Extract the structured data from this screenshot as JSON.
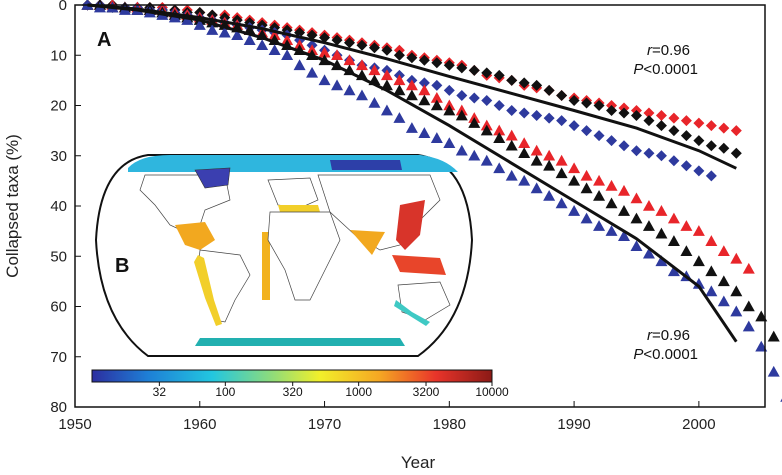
{
  "chart_data": {
    "type": "scatter",
    "panel_labels": {
      "a": "A",
      "b": "B"
    },
    "xlabel": "Year",
    "ylabel": "Collapsed taxa (%)",
    "xlim": [
      1950,
      2005
    ],
    "ylim": [
      0,
      80
    ],
    "y_inverted": true,
    "x_ticks": [
      1950,
      1960,
      1970,
      1980,
      1990,
      2000
    ],
    "y_ticks": [
      0,
      10,
      20,
      30,
      40,
      50,
      60,
      70,
      80
    ],
    "grid": false,
    "colors": {
      "red": "#e8252a",
      "black": "#111111",
      "blue": "#2e3a9e",
      "fit": "#111111"
    },
    "annotations": [
      {
        "r_sym": "r",
        "r_val": "=0.96",
        "p_sym": "P",
        "p_val": "<0.0001"
      },
      {
        "r_sym": "r",
        "r_val": "=0.96",
        "p_sym": "P",
        "p_val": "<0.0001"
      }
    ],
    "series": [
      {
        "marker": "diamond",
        "color": "red",
        "x0": 1951,
        "values": [
          0,
          0,
          0,
          0.5,
          0.5,
          0.5,
          0.5,
          1,
          1,
          1.5,
          2,
          2,
          2.5,
          3,
          3.5,
          4,
          4.5,
          5,
          5.5,
          6,
          6.5,
          7,
          7.5,
          8,
          8.5,
          9,
          10,
          10.5,
          11,
          11.5,
          12,
          13,
          14,
          14.5,
          15,
          16,
          16.5,
          17,
          18,
          18.5,
          19,
          19.5,
          20,
          20.5,
          21,
          21.5,
          22,
          22.5,
          23,
          23.5,
          24,
          24.5,
          25
        ]
      },
      {
        "marker": "diamond",
        "color": "black",
        "x0": 1951,
        "values": [
          0,
          0,
          0,
          0.5,
          0.5,
          0.5,
          1,
          1,
          1.5,
          1.5,
          2,
          2.5,
          3,
          3.5,
          4,
          4.5,
          5,
          5.5,
          6,
          6.5,
          7,
          7.5,
          8,
          8.5,
          9,
          10,
          10.5,
          11,
          11.5,
          12,
          12.5,
          13,
          13.5,
          14,
          15,
          15.5,
          16,
          17,
          18,
          19,
          19.5,
          20,
          21,
          21.5,
          22,
          23,
          24,
          25,
          26,
          27,
          28,
          28.5,
          29.5
        ]
      },
      {
        "marker": "diamond",
        "color": "blue",
        "x0": 1951,
        "values": [
          0,
          0,
          0.5,
          0.5,
          0.5,
          1,
          1,
          1.5,
          2,
          2.5,
          3,
          3.5,
          4,
          4.5,
          5,
          5.5,
          6,
          7,
          8,
          9,
          10,
          11,
          12,
          12.5,
          13,
          14,
          15,
          15.5,
          16,
          17,
          18,
          18.5,
          19,
          20,
          21,
          21.5,
          22,
          22.5,
          23,
          24,
          25,
          26,
          27,
          28,
          29,
          29.5,
          30,
          31,
          32,
          33,
          34
        ]
      },
      {
        "marker": "triangle",
        "color": "red",
        "x0": 1951,
        "values": [
          0,
          0,
          0,
          0.5,
          0.5,
          1,
          1,
          1.5,
          2,
          2.5,
          3,
          3.5,
          4,
          5,
          5.5,
          6,
          7,
          8,
          9,
          9.5,
          10,
          11,
          12,
          13,
          14,
          15,
          16,
          17,
          18.5,
          20,
          21,
          22.5,
          24,
          25,
          26,
          27.5,
          29,
          30,
          31,
          32.5,
          34,
          35,
          36,
          37,
          38.5,
          40,
          41,
          42.5,
          44,
          45,
          47,
          49,
          50.5,
          52.5
        ]
      },
      {
        "marker": "triangle",
        "color": "black",
        "x0": 1951,
        "values": [
          0,
          0,
          0.5,
          0.5,
          1,
          1,
          1.5,
          2,
          2.5,
          3,
          3.5,
          4,
          4.5,
          5,
          6,
          7,
          8,
          9,
          10,
          11,
          12,
          13,
          14,
          15,
          16,
          17,
          18,
          19,
          20,
          21,
          22,
          23.5,
          25,
          26.5,
          28,
          29.5,
          31,
          32,
          33.5,
          35,
          36.5,
          38,
          39.5,
          41,
          42.5,
          44,
          45.5,
          47,
          49,
          51,
          53,
          55,
          57,
          60,
          62,
          66
        ]
      },
      {
        "marker": "triangle",
        "color": "blue",
        "x0": 1951,
        "values": [
          0,
          0.5,
          0.5,
          1,
          1,
          1.5,
          2,
          2.5,
          3,
          4,
          5,
          5.5,
          6,
          7,
          8,
          9,
          10,
          12,
          13.5,
          15,
          16,
          17,
          18,
          19.5,
          21,
          22.5,
          24.5,
          25.5,
          26.5,
          27.5,
          29,
          30,
          31,
          32.5,
          34,
          35,
          36.5,
          38,
          39.5,
          41,
          42.5,
          44,
          45,
          46,
          48,
          49.5,
          51,
          53,
          54,
          55.5,
          57,
          59,
          61,
          64,
          68,
          73,
          78
        ]
      }
    ],
    "fits": [
      {
        "x": [
          1951,
          1955,
          1960,
          1965,
          1970,
          1975,
          1980,
          1985,
          1990,
          1995,
          2000,
          2003
        ],
        "y": [
          0,
          0.8,
          2.5,
          4.7,
          7.5,
          10.7,
          14.2,
          17.6,
          21,
          24.5,
          29,
          32.5
        ]
      },
      {
        "x": [
          1951,
          1955,
          1960,
          1965,
          1970,
          1975,
          1980,
          1985,
          1990,
          1995,
          2000,
          2003
        ],
        "y": [
          0,
          1,
          3,
          6.5,
          11,
          17,
          24,
          31.5,
          39,
          46.5,
          56,
          67
        ]
      }
    ],
    "inset": {
      "colorbar_ticks": [
        "32",
        "100",
        "320",
        "1000",
        "3200",
        "10000"
      ],
      "colorbar_colors": [
        "#2c2ea0",
        "#1e7fd6",
        "#22c6e0",
        "#8fdc7a",
        "#f2ef2a",
        "#f5a623",
        "#e8342a",
        "#8b1a16"
      ]
    }
  }
}
